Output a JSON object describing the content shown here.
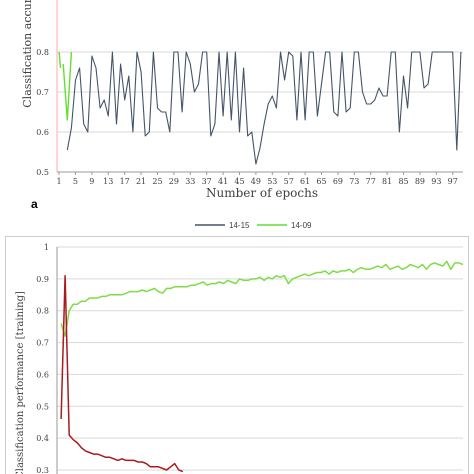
{
  "colors": {
    "series_14_15": "#44546a",
    "series_14_09": "#66dd33",
    "upper_red": "#ffaaaa",
    "train_green": "#7fdc48",
    "train_red": "#aa1a1a",
    "frame": "#cccccc",
    "grid": "#d9d9d9",
    "axis": "#999999",
    "text": "#404040"
  },
  "chart_data": [
    {
      "type": "line",
      "panel_label": "a",
      "ylabel": "Classification accur",
      "xlabel": "Number of epochs",
      "y_ticks": [
        "0.5",
        "0.6",
        "0.7",
        "0.8"
      ],
      "ylim": [
        0.5,
        1.0
      ],
      "x_ticks": [
        "1",
        "5",
        "9",
        "13",
        "17",
        "21",
        "25",
        "29",
        "33",
        "37",
        "41",
        "45",
        "49",
        "53",
        "57",
        "61",
        "65",
        "69",
        "73",
        "77",
        "81",
        "85",
        "89",
        "93",
        "97"
      ],
      "grid": true,
      "legend": [
        "14-15",
        "14-09"
      ],
      "legend_position": "bottom",
      "series": [
        {
          "name": "14-15",
          "x": [
            3,
            4,
            5,
            6,
            7,
            8,
            9,
            10,
            11,
            12,
            13,
            14,
            15,
            16,
            17,
            18,
            19,
            20,
            21,
            22,
            23,
            24,
            25,
            26,
            27,
            28,
            29,
            30,
            31,
            32,
            33,
            34,
            35,
            36,
            37,
            38,
            39,
            40,
            41,
            42,
            43,
            44,
            45,
            46,
            47,
            48,
            49,
            50,
            51,
            52,
            53,
            54,
            55,
            56,
            57,
            58,
            59,
            60,
            61,
            62,
            63,
            64,
            65,
            66,
            67,
            68,
            69,
            70,
            71,
            72,
            73,
            74,
            75,
            76,
            77,
            78,
            79,
            80,
            81,
            82,
            83,
            84,
            85,
            86,
            87,
            88,
            89,
            90,
            91,
            92,
            93,
            94,
            95,
            96,
            97,
            98,
            99
          ],
          "values": [
            0.555,
            0.61,
            0.73,
            0.76,
            0.62,
            0.6,
            0.79,
            0.76,
            0.66,
            0.68,
            0.64,
            0.8,
            0.62,
            0.77,
            0.68,
            0.74,
            0.6,
            0.8,
            0.75,
            0.59,
            0.6,
            0.8,
            0.66,
            0.65,
            0.65,
            0.6,
            0.8,
            0.8,
            0.65,
            0.8,
            0.77,
            0.7,
            0.72,
            0.8,
            0.8,
            0.59,
            0.62,
            0.8,
            0.64,
            0.8,
            0.63,
            0.8,
            0.6,
            0.76,
            0.59,
            0.6,
            0.52,
            0.56,
            0.62,
            0.67,
            0.69,
            0.66,
            0.8,
            0.73,
            0.8,
            0.79,
            0.63,
            0.8,
            0.63,
            0.8,
            0.8,
            0.64,
            0.72,
            0.8,
            0.8,
            0.65,
            0.64,
            0.8,
            0.65,
            0.66,
            0.8,
            0.8,
            0.7,
            0.67,
            0.67,
            0.68,
            0.71,
            0.69,
            0.69,
            0.8,
            0.8,
            0.6,
            0.74,
            0.66,
            0.8,
            0.8,
            0.8,
            0.71,
            0.72,
            0.8,
            0.8,
            0.8,
            0.8,
            0.8,
            0.8,
            0.555,
            0.8
          ]
        },
        {
          "name": "14-09",
          "x": [
            2,
            3,
            4
          ],
          "values": [
            0.77,
            0.63,
            0.8
          ]
        }
      ],
      "extra_series": [
        {
          "x": [
            1,
            1.35
          ],
          "values": [
            0.8,
            0.76
          ]
        }
      ]
    },
    {
      "type": "line",
      "ylabel": "Classification performance [training]",
      "y_ticks": [
        "0.3",
        "0.4",
        "0.5",
        "0.6",
        "0.7",
        "0.8",
        "0.9",
        "1"
      ],
      "ylim": [
        0.3,
        1.0
      ],
      "xlim": [
        0,
        100
      ],
      "grid": true,
      "series": [
        {
          "x": [
            1,
            2,
            3,
            4,
            5,
            6,
            7,
            8,
            9,
            10,
            11,
            12,
            13,
            14,
            15,
            16,
            17,
            18,
            19,
            20,
            21,
            22,
            23,
            24,
            25,
            26,
            27,
            28,
            29,
            30,
            31,
            32,
            33,
            34,
            35,
            36,
            37,
            38,
            39,
            40,
            41,
            42,
            43,
            44,
            45,
            46,
            47,
            48,
            49,
            50,
            51,
            52,
            53,
            54,
            55,
            56,
            57,
            58,
            59,
            60,
            61,
            62,
            63,
            64,
            65,
            66,
            67,
            68,
            69,
            70,
            71,
            72,
            73,
            74,
            75,
            76,
            77,
            78,
            79,
            80,
            81,
            82,
            83,
            84,
            85,
            86,
            87,
            88,
            89,
            90,
            91,
            92,
            93,
            94,
            95,
            96,
            97,
            98,
            99,
            100
          ],
          "values": [
            0.76,
            0.72,
            0.8,
            0.82,
            0.82,
            0.83,
            0.83,
            0.84,
            0.84,
            0.84,
            0.845,
            0.845,
            0.85,
            0.85,
            0.85,
            0.85,
            0.855,
            0.86,
            0.86,
            0.86,
            0.865,
            0.86,
            0.865,
            0.87,
            0.86,
            0.855,
            0.87,
            0.87,
            0.875,
            0.875,
            0.875,
            0.875,
            0.88,
            0.88,
            0.885,
            0.89,
            0.88,
            0.885,
            0.885,
            0.89,
            0.885,
            0.895,
            0.89,
            0.885,
            0.9,
            0.895,
            0.895,
            0.9,
            0.9,
            0.905,
            0.895,
            0.905,
            0.9,
            0.91,
            0.905,
            0.91,
            0.885,
            0.9,
            0.905,
            0.91,
            0.915,
            0.91,
            0.915,
            0.92,
            0.92,
            0.925,
            0.915,
            0.925,
            0.92,
            0.925,
            0.925,
            0.93,
            0.92,
            0.93,
            0.935,
            0.93,
            0.93,
            0.935,
            0.94,
            0.935,
            0.945,
            0.93,
            0.935,
            0.94,
            0.93,
            0.935,
            0.945,
            0.94,
            0.935,
            0.945,
            0.93,
            0.945,
            0.95,
            0.945,
            0.94,
            0.955,
            0.93,
            0.95,
            0.95,
            0.945
          ]
        },
        {
          "x": [
            1,
            2,
            3,
            4,
            5,
            6,
            7,
            8,
            9,
            10,
            11,
            12,
            13,
            14,
            15,
            16,
            17,
            18,
            19,
            20,
            21,
            22,
            23,
            24,
            25,
            26,
            27,
            28,
            29,
            30,
            31
          ],
          "values": [
            0.46,
            0.91,
            0.41,
            0.395,
            0.385,
            0.37,
            0.36,
            0.355,
            0.35,
            0.35,
            0.345,
            0.34,
            0.34,
            0.335,
            0.33,
            0.335,
            0.33,
            0.33,
            0.33,
            0.325,
            0.325,
            0.32,
            0.31,
            0.31,
            0.31,
            0.305,
            0.3,
            0.31,
            0.32,
            0.3,
            0.295
          ]
        }
      ]
    }
  ]
}
